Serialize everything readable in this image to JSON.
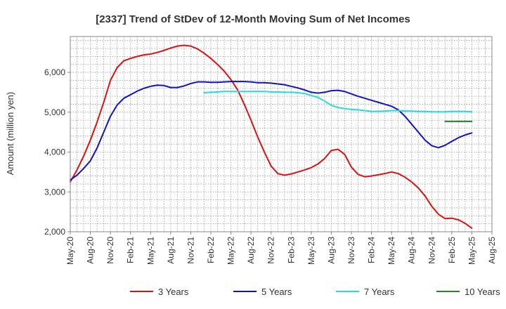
{
  "chart_data": {
    "type": "line",
    "title": "[2337]  Trend of StDev of 12-Month Moving Sum of Net Incomes",
    "xlabel": "",
    "ylabel": "Amount (million yen)",
    "x_tick_labels": [
      "May-20",
      "Aug-20",
      "Nov-20",
      "Feb-21",
      "May-21",
      "Aug-21",
      "Nov-21",
      "Feb-22",
      "May-22",
      "Aug-22",
      "Nov-22",
      "Feb-23",
      "May-23",
      "Aug-23",
      "Nov-23",
      "Feb-24",
      "May-24",
      "Aug-24",
      "Nov-24",
      "Feb-25",
      "May-25",
      "Aug-25"
    ],
    "y_ticks": [
      2000,
      3000,
      4000,
      5000,
      6000
    ],
    "y_tick_labels": [
      "2,000",
      "3,000",
      "4,000",
      "5,000",
      "6,000"
    ],
    "ylim": [
      2000,
      6900
    ],
    "x_range_months": [
      0,
      63
    ],
    "grid": true,
    "legend_position": "bottom",
    "x_unit_note": "months since May-20",
    "series": [
      {
        "name": "3 Years",
        "color": "#dd1111",
        "points": [
          [
            0,
            3250
          ],
          [
            1,
            3550
          ],
          [
            2,
            3900
          ],
          [
            3,
            4300
          ],
          [
            4,
            4750
          ],
          [
            5,
            5250
          ],
          [
            6,
            5800
          ],
          [
            7,
            6120
          ],
          [
            8,
            6290
          ],
          [
            9,
            6350
          ],
          [
            10,
            6400
          ],
          [
            11,
            6440
          ],
          [
            12,
            6460
          ],
          [
            13,
            6500
          ],
          [
            14,
            6550
          ],
          [
            15,
            6610
          ],
          [
            16,
            6660
          ],
          [
            17,
            6680
          ],
          [
            18,
            6660
          ],
          [
            19,
            6590
          ],
          [
            20,
            6480
          ],
          [
            21,
            6350
          ],
          [
            22,
            6200
          ],
          [
            23,
            6030
          ],
          [
            24,
            5820
          ],
          [
            25,
            5560
          ],
          [
            26,
            5200
          ],
          [
            27,
            4800
          ],
          [
            28,
            4380
          ],
          [
            29,
            4000
          ],
          [
            30,
            3650
          ],
          [
            31,
            3460
          ],
          [
            32,
            3420
          ],
          [
            33,
            3450
          ],
          [
            34,
            3500
          ],
          [
            35,
            3550
          ],
          [
            36,
            3610
          ],
          [
            37,
            3700
          ],
          [
            38,
            3840
          ],
          [
            39,
            4040
          ],
          [
            40,
            4070
          ],
          [
            41,
            3940
          ],
          [
            42,
            3620
          ],
          [
            43,
            3440
          ],
          [
            44,
            3380
          ],
          [
            45,
            3400
          ],
          [
            46,
            3430
          ],
          [
            47,
            3460
          ],
          [
            48,
            3500
          ],
          [
            49,
            3460
          ],
          [
            50,
            3370
          ],
          [
            51,
            3250
          ],
          [
            52,
            3100
          ],
          [
            53,
            2900
          ],
          [
            54,
            2640
          ],
          [
            55,
            2440
          ],
          [
            56,
            2330
          ],
          [
            57,
            2340
          ],
          [
            58,
            2300
          ],
          [
            59,
            2210
          ],
          [
            60,
            2090
          ]
        ]
      },
      {
        "name": "5 Years",
        "color": "#1111cc",
        "points": [
          [
            0,
            3300
          ],
          [
            1,
            3420
          ],
          [
            2,
            3590
          ],
          [
            3,
            3780
          ],
          [
            4,
            4100
          ],
          [
            5,
            4500
          ],
          [
            6,
            4900
          ],
          [
            7,
            5180
          ],
          [
            8,
            5350
          ],
          [
            9,
            5440
          ],
          [
            10,
            5530
          ],
          [
            11,
            5600
          ],
          [
            12,
            5650
          ],
          [
            13,
            5680
          ],
          [
            14,
            5670
          ],
          [
            15,
            5620
          ],
          [
            16,
            5620
          ],
          [
            17,
            5660
          ],
          [
            18,
            5720
          ],
          [
            19,
            5760
          ],
          [
            20,
            5760
          ],
          [
            21,
            5750
          ],
          [
            22,
            5750
          ],
          [
            23,
            5760
          ],
          [
            24,
            5770
          ],
          [
            25,
            5770
          ],
          [
            26,
            5770
          ],
          [
            27,
            5760
          ],
          [
            28,
            5740
          ],
          [
            29,
            5740
          ],
          [
            30,
            5730
          ],
          [
            31,
            5710
          ],
          [
            32,
            5690
          ],
          [
            33,
            5650
          ],
          [
            34,
            5610
          ],
          [
            35,
            5560
          ],
          [
            36,
            5500
          ],
          [
            37,
            5480
          ],
          [
            38,
            5500
          ],
          [
            39,
            5540
          ],
          [
            40,
            5550
          ],
          [
            41,
            5520
          ],
          [
            42,
            5460
          ],
          [
            43,
            5400
          ],
          [
            44,
            5350
          ],
          [
            45,
            5300
          ],
          [
            46,
            5250
          ],
          [
            47,
            5200
          ],
          [
            48,
            5150
          ],
          [
            49,
            5060
          ],
          [
            50,
            4900
          ],
          [
            51,
            4700
          ],
          [
            52,
            4500
          ],
          [
            53,
            4300
          ],
          [
            54,
            4160
          ],
          [
            55,
            4110
          ],
          [
            56,
            4170
          ],
          [
            57,
            4270
          ],
          [
            58,
            4360
          ],
          [
            59,
            4430
          ],
          [
            60,
            4480
          ]
        ]
      },
      {
        "name": "7 Years",
        "color": "#22dddd",
        "points": [
          [
            20,
            5490
          ],
          [
            21,
            5500
          ],
          [
            22,
            5510
          ],
          [
            23,
            5520
          ],
          [
            24,
            5520
          ],
          [
            25,
            5520
          ],
          [
            26,
            5520
          ],
          [
            27,
            5520
          ],
          [
            28,
            5520
          ],
          [
            29,
            5520
          ],
          [
            30,
            5510
          ],
          [
            31,
            5510
          ],
          [
            32,
            5500
          ],
          [
            33,
            5500
          ],
          [
            34,
            5490
          ],
          [
            35,
            5470
          ],
          [
            36,
            5420
          ],
          [
            37,
            5370
          ],
          [
            38,
            5280
          ],
          [
            39,
            5170
          ],
          [
            40,
            5120
          ],
          [
            41,
            5090
          ],
          [
            42,
            5070
          ],
          [
            43,
            5060
          ],
          [
            44,
            5040
          ],
          [
            45,
            5020
          ],
          [
            46,
            5020
          ],
          [
            47,
            5030
          ],
          [
            48,
            5040
          ],
          [
            49,
            5040
          ],
          [
            50,
            5030
          ],
          [
            51,
            5030
          ],
          [
            52,
            5020
          ],
          [
            53,
            5020
          ],
          [
            54,
            5010
          ],
          [
            55,
            5010
          ],
          [
            56,
            5010
          ],
          [
            57,
            5020
          ],
          [
            58,
            5020
          ],
          [
            59,
            5020
          ],
          [
            60,
            5010
          ]
        ]
      },
      {
        "name": "10 Years",
        "color": "#228822",
        "points": [
          [
            56,
            4770
          ],
          [
            57,
            4770
          ],
          [
            58,
            4770
          ],
          [
            59,
            4770
          ],
          [
            60,
            4770
          ]
        ]
      }
    ]
  }
}
